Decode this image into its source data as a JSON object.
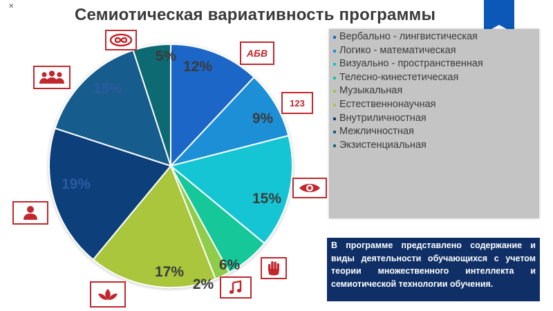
{
  "title": "Семиотическая вариативность программы",
  "chart_data": {
    "type": "pie",
    "labels": [
      "Вербально - лингвистическая",
      "Логико - математическая",
      "Визуально - пространственная",
      "Телесно-кинестетическая",
      "Музыкальная",
      "Естественнонаучная",
      "Внутриличностная",
      "Межличностная",
      "Экзистенциальная"
    ],
    "values": [
      12,
      9,
      15,
      6,
      2,
      17,
      19,
      15,
      5
    ],
    "value_labels": [
      "12%",
      "9%",
      "15%",
      "6%",
      "2%",
      "17%",
      "19%",
      "15%",
      "5%"
    ],
    "colors": [
      "#1a66c8",
      "#1c8fd6",
      "#18c5d4",
      "#14c79a",
      "#8fcc4a",
      "#a9c63d",
      "#0b3f7a",
      "#125c8c",
      "#0f6a72"
    ],
    "label_colors": [
      "#3b3b3b",
      "#3b3b3b",
      "#3b3b3b",
      "#3b3b3b",
      "#3b3b3b",
      "#3b3b3b",
      "#2d5aa0",
      "#2d5aa0",
      "#3b3b3b"
    ],
    "start_angle_deg": 0,
    "direction": "clockwise",
    "legend_position": "right"
  },
  "legend": {
    "items": [
      "Вербально - лингвистическая",
      "Логико - математическая",
      "Визуально - пространственная",
      "Телесно-кинестетическая",
      "Музыкальная",
      "Естественнонаучная",
      "Внутриличностная",
      "Межличностная",
      "Экзистенциальная"
    ],
    "bullet_colors": [
      "#1a66c8",
      "#1c8fd6",
      "#18c5d4",
      "#14c79a",
      "#8fcc4a",
      "#a9c63d",
      "#0b3f7a",
      "#125c8c",
      "#0f6a72"
    ]
  },
  "info_text": "В программе представлено содержание и виды деятельности обучающихся с учетом теории множественного интеллекта и семиотической технологии обучения.",
  "icons": {
    "letters_text": "АБВ",
    "numbers_text": "123",
    "names": [
      "infinity-icon",
      "letters-icon",
      "numbers-icon",
      "eye-icon",
      "hand-icon",
      "music-note-icon",
      "plant-icon",
      "person-icon",
      "group-icon"
    ],
    "accent_color": "#c1272d"
  },
  "colors": {
    "info_box_bg": "#0f2f66",
    "legend_bg": "#c4c4c4",
    "accent": "#c1272d"
  }
}
